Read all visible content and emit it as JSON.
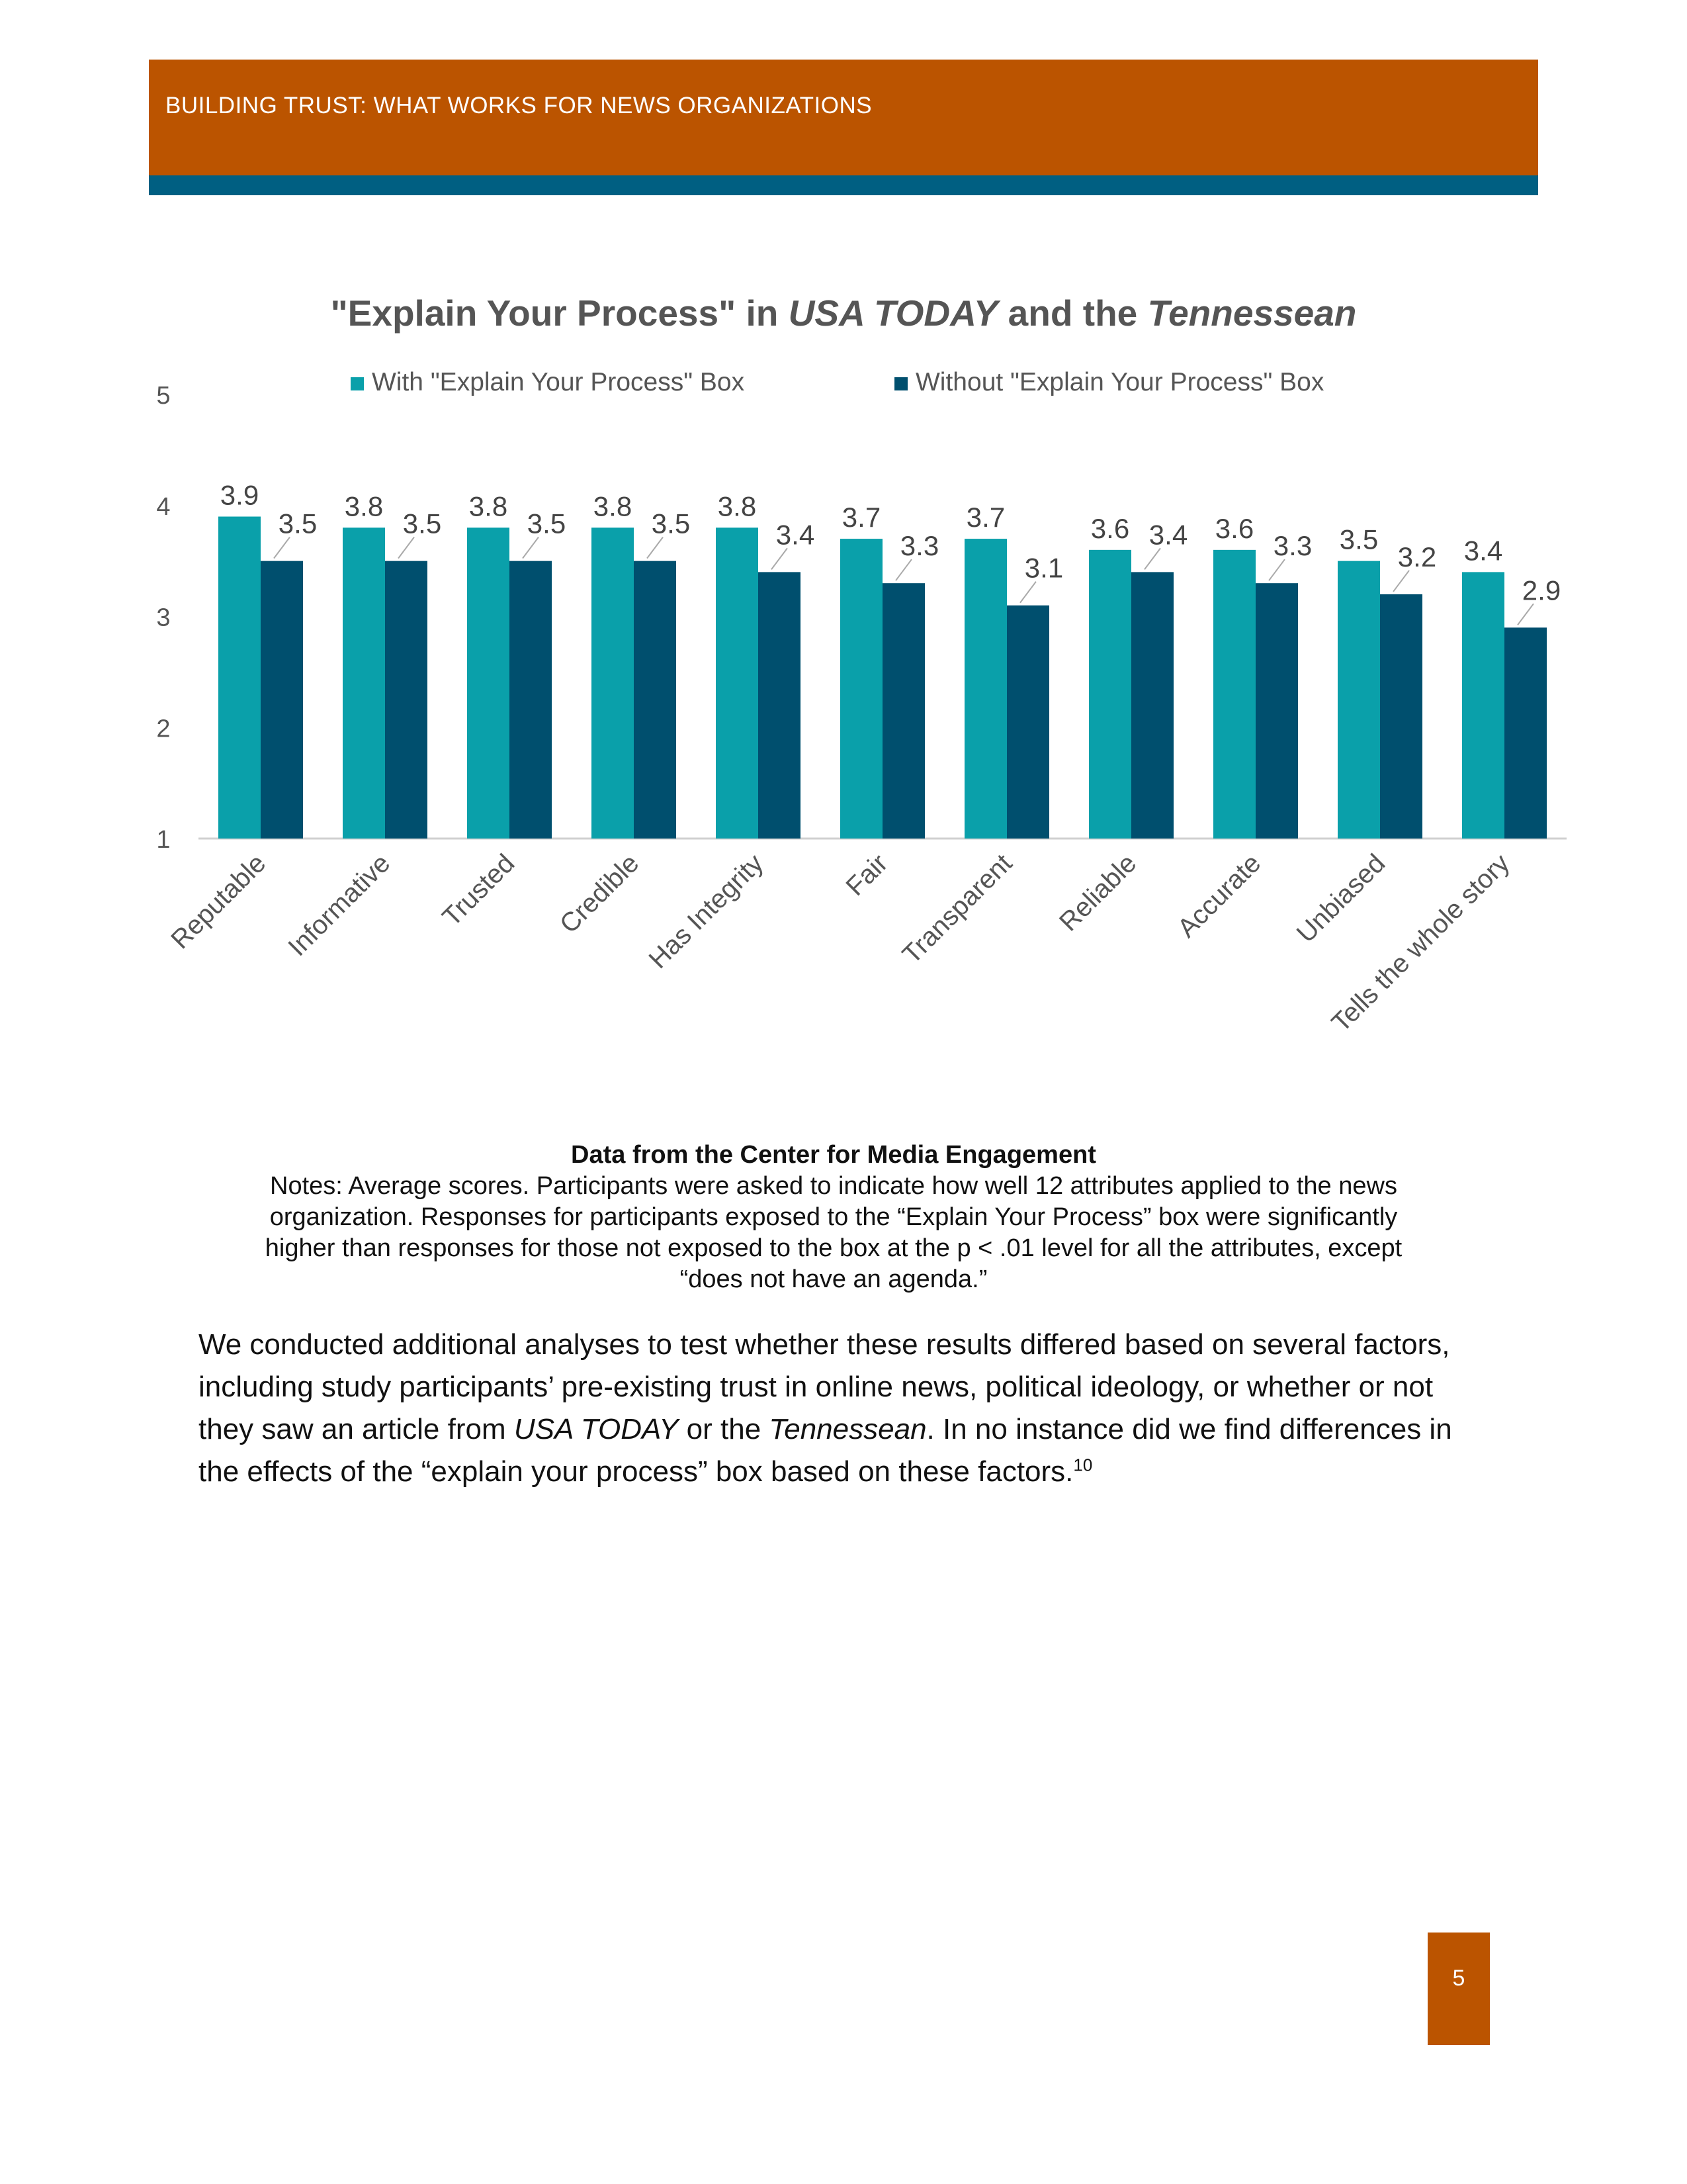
{
  "header": {
    "title": "BUILDING TRUST: WHAT WORKS FOR NEWS ORGANIZATIONS"
  },
  "chart_data": {
    "type": "bar",
    "title_parts": [
      "\"Explain Your Process\" in ",
      "USA TODAY",
      " and the ",
      "Tennessean"
    ],
    "categories": [
      "Reputable",
      "Informative",
      "Trusted",
      "Credible",
      "Has Integrity",
      "Fair",
      "Transparent",
      "Reliable",
      "Accurate",
      "Unbiased",
      "Tells the whole story"
    ],
    "series": [
      {
        "name": "With \"Explain Your Process\" Box",
        "color": "#0aa0aa",
        "values": [
          3.9,
          3.8,
          3.8,
          3.8,
          3.8,
          3.7,
          3.7,
          3.6,
          3.6,
          3.5,
          3.4
        ]
      },
      {
        "name": "Without \"Explain Your Process\" Box",
        "color": "#004f6e",
        "values": [
          3.5,
          3.5,
          3.5,
          3.5,
          3.4,
          3.3,
          3.1,
          3.4,
          3.3,
          3.2,
          2.9
        ]
      }
    ],
    "ylim": [
      1,
      5
    ],
    "yticks": [
      "1",
      "2",
      "3",
      "4",
      "5"
    ],
    "grid": false,
    "legend_position": "top"
  },
  "notes": {
    "source": "Data from the Center for Media Engagement",
    "lines": [
      "Notes: Average scores. Participants were asked to indicate how well 12 attributes applied to the news",
      "organization. Responses for participants exposed to the “Explain Your Process” box were significantly",
      "higher than responses for those not exposed to the box at the p < .01 level for all the attributes, except",
      "“does not have an agenda.”"
    ]
  },
  "body": {
    "p1": "We conducted additional analyses to test whether these results differed based on several factors, including study participants’ pre-existing trust in online news, political ideology, or whether or not they saw an article from ",
    "p1_italic1": "USA TODAY",
    "p1_mid": " or the ",
    "p1_italic2": "Tennessean",
    "p1_end": ". In no instance did we find differences in the effects of the “explain your process” box based on these factors.",
    "footnote": "10"
  },
  "page_number": "5"
}
